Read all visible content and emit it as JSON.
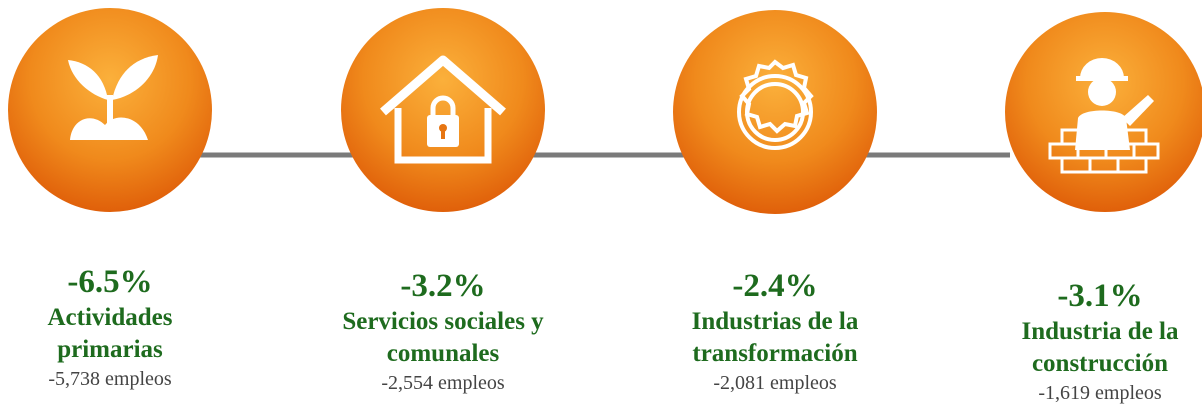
{
  "items": [
    {
      "percent": "-6.5%",
      "label": "Actividades primarias",
      "jobs": "-5,738 empleos"
    },
    {
      "percent": "-3.2%",
      "label": "Servicios sociales y comunales",
      "jobs": "-2,554 empleos"
    },
    {
      "percent": "-2.4%",
      "label": "Industrias de la transformación",
      "jobs": "-2,081 empleos"
    },
    {
      "percent": "-3.1%",
      "label": "Industria de la construcción",
      "jobs": "-1,619 empleos"
    }
  ]
}
